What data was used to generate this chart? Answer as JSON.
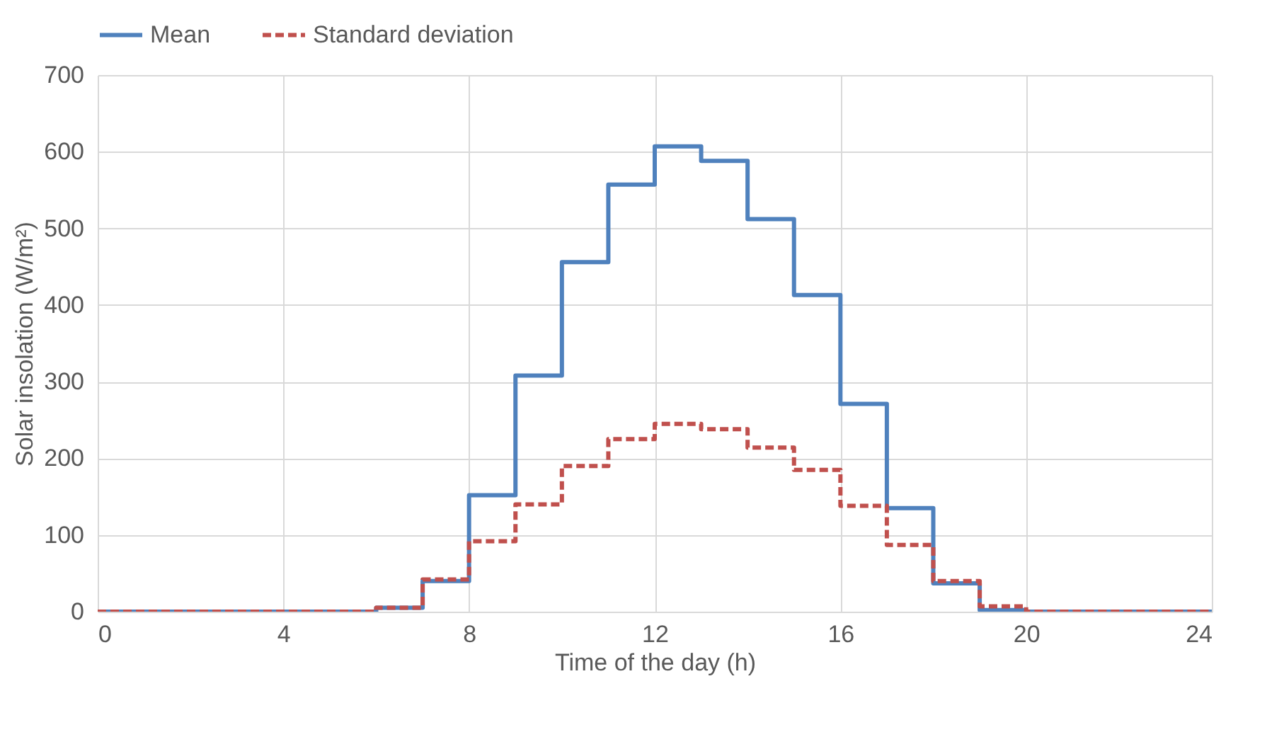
{
  "chart_data": {
    "type": "step",
    "xlabel": "Time of the day (h)",
    "ylabel": "Solar insolation (W/m²)",
    "x": [
      0,
      1,
      2,
      3,
      4,
      5,
      6,
      7,
      8,
      9,
      10,
      11,
      12,
      13,
      14,
      15,
      16,
      17,
      18,
      19,
      20,
      21,
      22,
      23,
      24
    ],
    "series": [
      {
        "name": "Mean",
        "color": "#4f81bd",
        "line_style": "solid",
        "values": [
          0,
          0,
          0,
          0,
          0,
          0,
          5,
          40,
          152,
          308,
          456,
          557,
          607,
          588,
          512,
          413,
          271,
          135,
          37,
          2,
          0,
          0,
          0,
          0,
          0
        ]
      },
      {
        "name": "Standard deviation",
        "color": "#c0504d",
        "line_style": "dashed",
        "values": [
          0,
          0,
          0,
          0,
          0,
          0,
          5,
          42,
          92,
          140,
          190,
          225,
          245,
          238,
          214,
          185,
          138,
          87,
          40,
          7,
          0,
          0,
          0,
          0,
          0
        ]
      }
    ],
    "xlim": [
      0,
      24
    ],
    "xticks": [
      0,
      4,
      8,
      12,
      16,
      20,
      24
    ],
    "ylim": [
      0,
      700
    ],
    "yticks": [
      0,
      100,
      200,
      300,
      400,
      500,
      600,
      700
    ],
    "grid": true,
    "legend": "top"
  }
}
